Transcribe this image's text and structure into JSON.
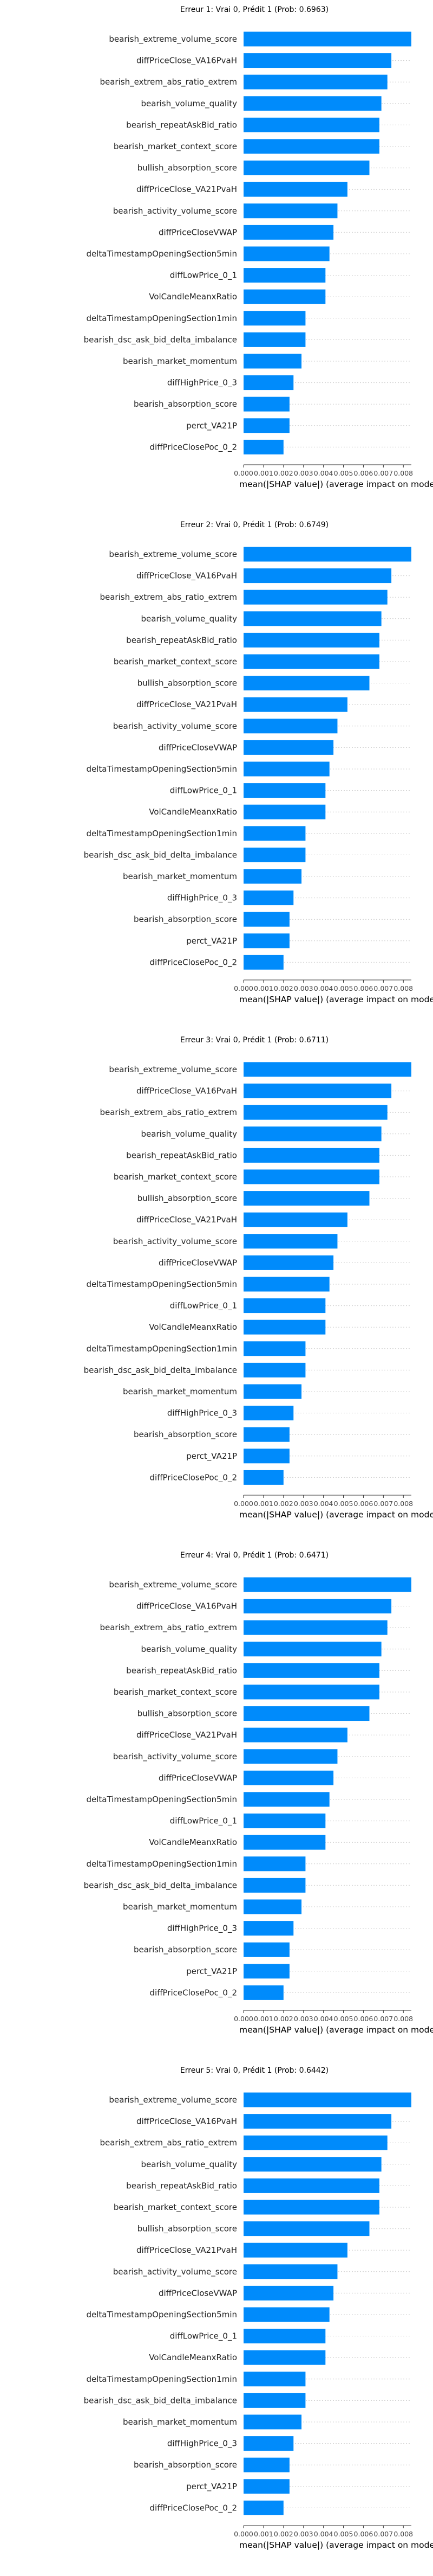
{
  "colors": {
    "bar": "#008bfb",
    "axis": "#333333",
    "grid": "#cccccc",
    "text": "#000000"
  },
  "chart_data": [
    {
      "type": "bar",
      "orientation": "horizontal",
      "title": "Erreur 1: Vrai 0, Prédit 1 (Prob: 0.6963)",
      "xlabel": "mean(|SHAP value|) (average impact on model output ma",
      "ylabel": "",
      "xlim": [
        0,
        0.0084
      ],
      "xticks": [
        "0.000",
        "0.001",
        "0.002",
        "0.003",
        "0.004",
        "0.005",
        "0.006",
        "0.007",
        "0.008"
      ],
      "grid": true,
      "categories": [
        "bearish_extreme_volume_score",
        "diffPriceClose_VA16PvaH",
        "bearish_extrem_abs_ratio_extrem",
        "bearish_volume_quality",
        "bearish_repeatAskBid_ratio",
        "bearish_market_context_score",
        "bullish_absorption_score",
        "diffPriceClose_VA21PvaH",
        "bearish_activity_volume_score",
        "diffPriceCloseVWAP",
        "deltaTimestampOpeningSection5min",
        "diffLowPrice_0_1",
        "VolCandleMeanxRatio",
        "deltaTimestampOpeningSection1min",
        "bearish_dsc_ask_bid_delta_imbalance",
        "bearish_market_momentum",
        "diffHighPrice_0_3",
        "bearish_absorption_score",
        "perct_VA21P",
        "diffPriceClosePoc_0_2"
      ],
      "values": [
        0.0084,
        0.0074,
        0.0072,
        0.0069,
        0.0068,
        0.0068,
        0.0063,
        0.0052,
        0.0047,
        0.0045,
        0.0043,
        0.0041,
        0.0041,
        0.0031,
        0.0031,
        0.0029,
        0.0025,
        0.0023,
        0.0023,
        0.002
      ]
    },
    {
      "type": "bar",
      "orientation": "horizontal",
      "title": "Erreur 2: Vrai 0, Prédit 1 (Prob: 0.6749)",
      "xlabel": "mean(|SHAP value|) (average impact on model output ma",
      "ylabel": "",
      "xlim": [
        0,
        0.0084
      ],
      "xticks": [
        "0.000",
        "0.001",
        "0.002",
        "0.003",
        "0.004",
        "0.005",
        "0.006",
        "0.007",
        "0.008"
      ],
      "grid": true,
      "categories": [
        "bearish_extreme_volume_score",
        "diffPriceClose_VA16PvaH",
        "bearish_extrem_abs_ratio_extrem",
        "bearish_volume_quality",
        "bearish_repeatAskBid_ratio",
        "bearish_market_context_score",
        "bullish_absorption_score",
        "diffPriceClose_VA21PvaH",
        "bearish_activity_volume_score",
        "diffPriceCloseVWAP",
        "deltaTimestampOpeningSection5min",
        "diffLowPrice_0_1",
        "VolCandleMeanxRatio",
        "deltaTimestampOpeningSection1min",
        "bearish_dsc_ask_bid_delta_imbalance",
        "bearish_market_momentum",
        "diffHighPrice_0_3",
        "bearish_absorption_score",
        "perct_VA21P",
        "diffPriceClosePoc_0_2"
      ],
      "values": [
        0.0084,
        0.0074,
        0.0072,
        0.0069,
        0.0068,
        0.0068,
        0.0063,
        0.0052,
        0.0047,
        0.0045,
        0.0043,
        0.0041,
        0.0041,
        0.0031,
        0.0031,
        0.0029,
        0.0025,
        0.0023,
        0.0023,
        0.002
      ]
    },
    {
      "type": "bar",
      "orientation": "horizontal",
      "title": "Erreur 3: Vrai 0, Prédit 1 (Prob: 0.6711)",
      "xlabel": "mean(|SHAP value|) (average impact on model output ma",
      "ylabel": "",
      "xlim": [
        0,
        0.0084
      ],
      "xticks": [
        "0.000",
        "0.001",
        "0.002",
        "0.003",
        "0.004",
        "0.005",
        "0.006",
        "0.007",
        "0.008"
      ],
      "grid": true,
      "categories": [
        "bearish_extreme_volume_score",
        "diffPriceClose_VA16PvaH",
        "bearish_extrem_abs_ratio_extrem",
        "bearish_volume_quality",
        "bearish_repeatAskBid_ratio",
        "bearish_market_context_score",
        "bullish_absorption_score",
        "diffPriceClose_VA21PvaH",
        "bearish_activity_volume_score",
        "diffPriceCloseVWAP",
        "deltaTimestampOpeningSection5min",
        "diffLowPrice_0_1",
        "VolCandleMeanxRatio",
        "deltaTimestampOpeningSection1min",
        "bearish_dsc_ask_bid_delta_imbalance",
        "bearish_market_momentum",
        "diffHighPrice_0_3",
        "bearish_absorption_score",
        "perct_VA21P",
        "diffPriceClosePoc_0_2"
      ],
      "values": [
        0.0084,
        0.0074,
        0.0072,
        0.0069,
        0.0068,
        0.0068,
        0.0063,
        0.0052,
        0.0047,
        0.0045,
        0.0043,
        0.0041,
        0.0041,
        0.0031,
        0.0031,
        0.0029,
        0.0025,
        0.0023,
        0.0023,
        0.002
      ]
    },
    {
      "type": "bar",
      "orientation": "horizontal",
      "title": "Erreur 4: Vrai 0, Prédit 1 (Prob: 0.6471)",
      "xlabel": "mean(|SHAP value|) (average impact on model output ma",
      "ylabel": "",
      "xlim": [
        0,
        0.0084
      ],
      "xticks": [
        "0.000",
        "0.001",
        "0.002",
        "0.003",
        "0.004",
        "0.005",
        "0.006",
        "0.007",
        "0.008"
      ],
      "grid": true,
      "categories": [
        "bearish_extreme_volume_score",
        "diffPriceClose_VA16PvaH",
        "bearish_extrem_abs_ratio_extrem",
        "bearish_volume_quality",
        "bearish_repeatAskBid_ratio",
        "bearish_market_context_score",
        "bullish_absorption_score",
        "diffPriceClose_VA21PvaH",
        "bearish_activity_volume_score",
        "diffPriceCloseVWAP",
        "deltaTimestampOpeningSection5min",
        "diffLowPrice_0_1",
        "VolCandleMeanxRatio",
        "deltaTimestampOpeningSection1min",
        "bearish_dsc_ask_bid_delta_imbalance",
        "bearish_market_momentum",
        "diffHighPrice_0_3",
        "bearish_absorption_score",
        "perct_VA21P",
        "diffPriceClosePoc_0_2"
      ],
      "values": [
        0.0084,
        0.0074,
        0.0072,
        0.0069,
        0.0068,
        0.0068,
        0.0063,
        0.0052,
        0.0047,
        0.0045,
        0.0043,
        0.0041,
        0.0041,
        0.0031,
        0.0031,
        0.0029,
        0.0025,
        0.0023,
        0.0023,
        0.002
      ]
    },
    {
      "type": "bar",
      "orientation": "horizontal",
      "title": "Erreur 5: Vrai 0, Prédit 1 (Prob: 0.6442)",
      "xlabel": "mean(|SHAP value|) (average impact on model output ma",
      "ylabel": "",
      "xlim": [
        0,
        0.0084
      ],
      "xticks": [
        "0.000",
        "0.001",
        "0.002",
        "0.003",
        "0.004",
        "0.005",
        "0.006",
        "0.007",
        "0.008"
      ],
      "grid": true,
      "categories": [
        "bearish_extreme_volume_score",
        "diffPriceClose_VA16PvaH",
        "bearish_extrem_abs_ratio_extrem",
        "bearish_volume_quality",
        "bearish_repeatAskBid_ratio",
        "bearish_market_context_score",
        "bullish_absorption_score",
        "diffPriceClose_VA21PvaH",
        "bearish_activity_volume_score",
        "diffPriceCloseVWAP",
        "deltaTimestampOpeningSection5min",
        "diffLowPrice_0_1",
        "VolCandleMeanxRatio",
        "deltaTimestampOpeningSection1min",
        "bearish_dsc_ask_bid_delta_imbalance",
        "bearish_market_momentum",
        "diffHighPrice_0_3",
        "bearish_absorption_score",
        "perct_VA21P",
        "diffPriceClosePoc_0_2"
      ],
      "values": [
        0.0084,
        0.0074,
        0.0072,
        0.0069,
        0.0068,
        0.0068,
        0.0063,
        0.0052,
        0.0047,
        0.0045,
        0.0043,
        0.0041,
        0.0041,
        0.0031,
        0.0031,
        0.0029,
        0.0025,
        0.0023,
        0.0023,
        0.002
      ]
    }
  ]
}
